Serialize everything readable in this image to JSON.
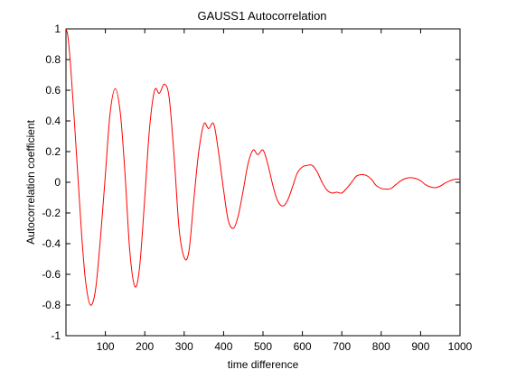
{
  "chart_data": {
    "type": "line",
    "title": "GAUSS1 Autocorrelation",
    "xlabel": "time difference",
    "ylabel": "Autocorrelation coefficient",
    "xlim": [
      0,
      1000
    ],
    "ylim": [
      -1,
      1
    ],
    "xticks": [
      100,
      200,
      300,
      400,
      500,
      600,
      700,
      800,
      900,
      1000
    ],
    "yticks": [
      1,
      0.8,
      0.6,
      0.4,
      0.2,
      0,
      -0.2,
      -0.4,
      -0.6,
      -0.8,
      -1
    ],
    "ytick_labels": [
      "1",
      "0.8",
      "0.6",
      "0.4",
      "0.2",
      "0",
      "-0.2",
      "-0.4",
      "-0.6",
      "-0.8",
      "-1"
    ],
    "grid": false,
    "series": [
      {
        "color": "#ff0000",
        "x": [
          0,
          5,
          12,
          20,
          30,
          40,
          50,
          62,
          75,
          88,
          100,
          112,
          125,
          138,
          150,
          162,
          175,
          187,
          200,
          212,
          225,
          237,
          250,
          262,
          275,
          287,
          300,
          312,
          325,
          337,
          350,
          362,
          375,
          387,
          400,
          412,
          425,
          437,
          450,
          462,
          475,
          487,
          500,
          512,
          525,
          537,
          550,
          562,
          575,
          587,
          600,
          612,
          625,
          637,
          650,
          662,
          675,
          687,
          700,
          712,
          725,
          737,
          750,
          762,
          775,
          787,
          800,
          812,
          825,
          837,
          850,
          862,
          875,
          887,
          900,
          912,
          925,
          937,
          950,
          962,
          975,
          987,
          1000
        ],
        "y": [
          1.0,
          0.95,
          0.75,
          0.45,
          0.05,
          -0.35,
          -0.65,
          -0.8,
          -0.7,
          -0.35,
          0.05,
          0.45,
          0.61,
          0.45,
          0.05,
          -0.45,
          -0.68,
          -0.55,
          -0.1,
          0.35,
          0.6,
          0.58,
          0.64,
          0.55,
          0.15,
          -0.3,
          -0.49,
          -0.45,
          -0.1,
          0.2,
          0.38,
          0.35,
          0.38,
          0.2,
          -0.05,
          -0.25,
          -0.3,
          -0.22,
          -0.05,
          0.12,
          0.21,
          0.18,
          0.21,
          0.12,
          -0.02,
          -0.12,
          -0.155,
          -0.12,
          -0.03,
          0.06,
          0.1,
          0.11,
          0.11,
          0.07,
          0.0,
          -0.05,
          -0.07,
          -0.065,
          -0.07,
          -0.04,
          0.0,
          0.04,
          0.05,
          0.045,
          0.02,
          -0.02,
          -0.04,
          -0.045,
          -0.04,
          -0.015,
          0.01,
          0.025,
          0.03,
          0.025,
          0.01,
          -0.015,
          -0.03,
          -0.035,
          -0.025,
          -0.005,
          0.01,
          0.02,
          0.02
        ]
      }
    ]
  }
}
